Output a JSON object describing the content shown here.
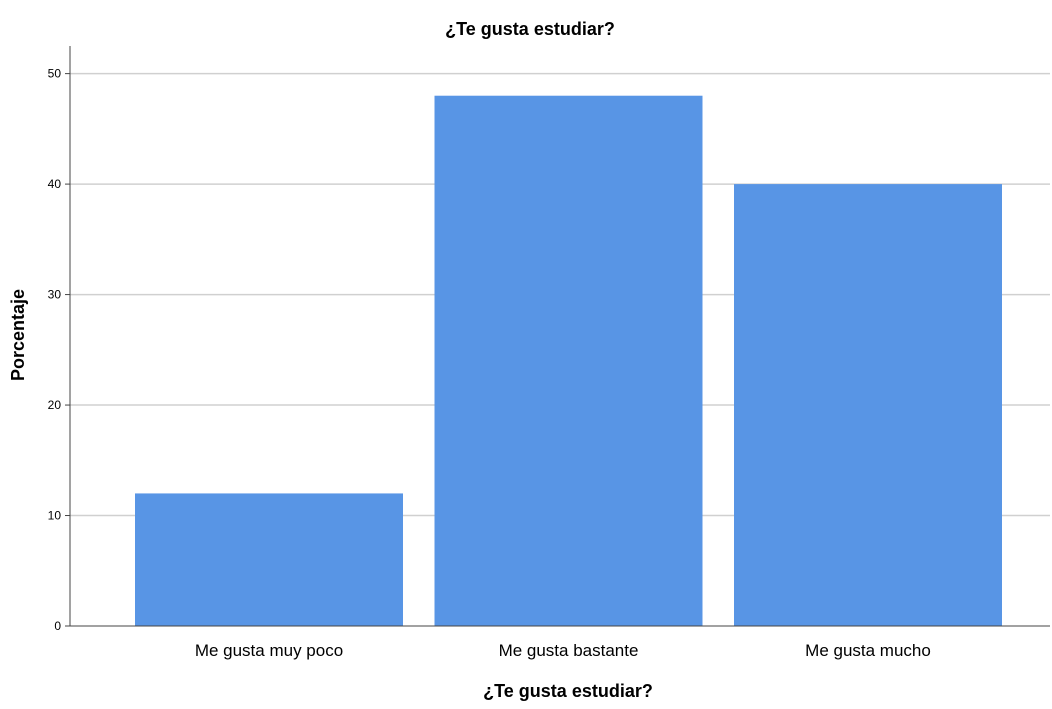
{
  "chart_data": {
    "type": "bar",
    "title": "¿Te gusta estudiar?",
    "xlabel": "¿Te gusta estudiar?",
    "ylabel": "Porcentaje",
    "categories": [
      "Me gusta muy poco",
      "Me gusta bastante",
      "Me gusta mucho"
    ],
    "values": [
      12,
      48,
      40
    ],
    "ylim": [
      0,
      52.5
    ],
    "yticks": [
      0,
      10,
      20,
      30,
      40,
      50
    ],
    "grid": true,
    "legend": "none",
    "colors": {
      "bar": "#5895e5",
      "grid": "#d0d0d0",
      "axis": "#444444"
    }
  }
}
